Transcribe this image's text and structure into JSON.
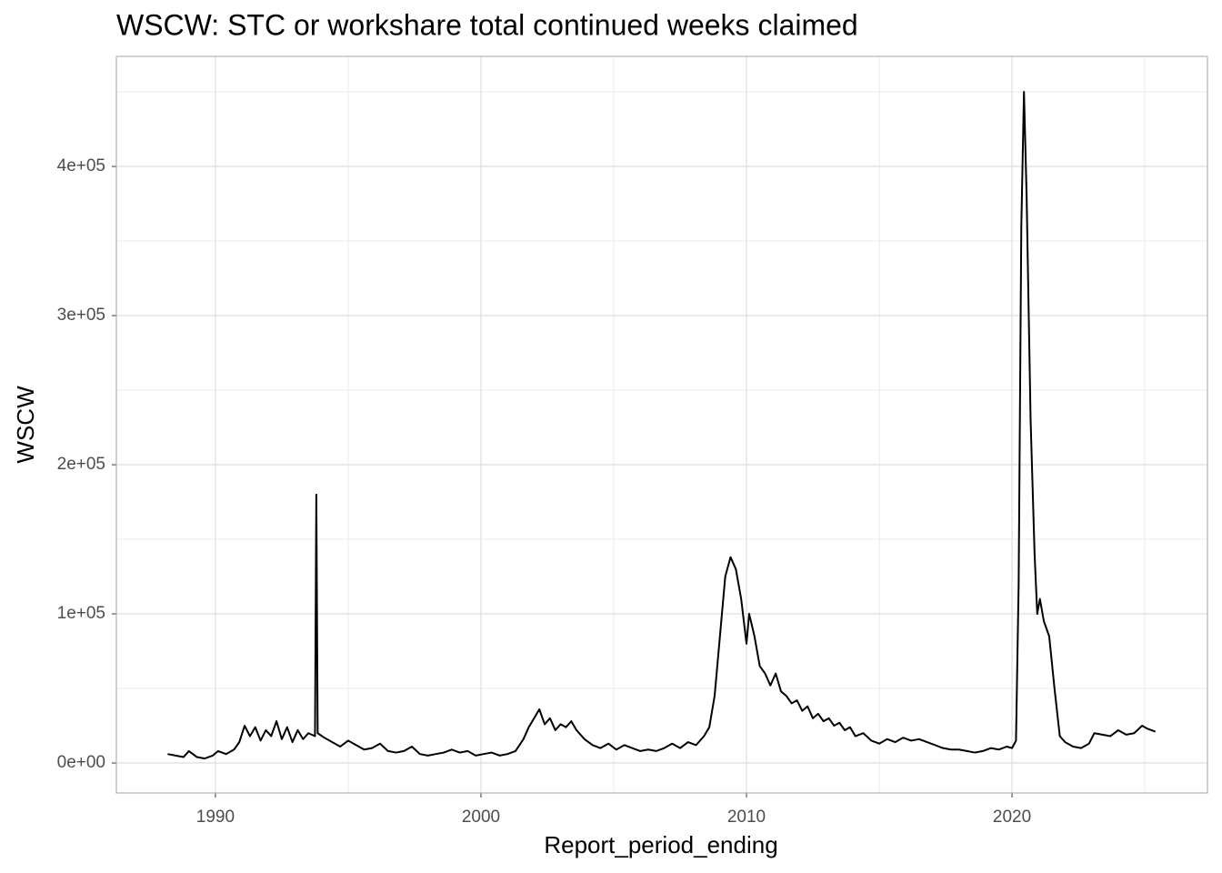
{
  "chart_data": {
    "type": "line",
    "title": "WSCW: STC or workshare total continued weeks claimed",
    "x_label": "Report_period_ending",
    "y_label": "WSCW",
    "xlim": [
      1986.27,
      2027.36
    ],
    "ylim": [
      -20100,
      473800
    ],
    "xticks": [
      1990,
      2000,
      2010,
      2020
    ],
    "xminorticks": [
      1995,
      2005,
      2015,
      2025
    ],
    "yticks": [
      {
        "value": 0,
        "label": "0e+00"
      },
      {
        "value": 100000,
        "label": "1e+05"
      },
      {
        "value": 200000,
        "label": "2e+05"
      },
      {
        "value": 300000,
        "label": "3e+05"
      },
      {
        "value": 400000,
        "label": "4e+05"
      }
    ],
    "yminorticks": [
      50000,
      150000,
      250000,
      350000,
      450000
    ],
    "grid": true,
    "series": [
      {
        "name": "WSCW",
        "color": "#000000",
        "x": [
          1988.2,
          1988.5,
          1988.8,
          1989.0,
          1989.3,
          1989.6,
          1989.9,
          1990.1,
          1990.4,
          1990.7,
          1990.9,
          1991.1,
          1991.3,
          1991.5,
          1991.7,
          1991.9,
          1992.1,
          1992.3,
          1992.5,
          1992.7,
          1992.9,
          1993.1,
          1993.3,
          1993.5,
          1993.75,
          1993.8,
          1993.85,
          1994.1,
          1994.4,
          1994.7,
          1995.0,
          1995.3,
          1995.6,
          1995.9,
          1996.2,
          1996.5,
          1996.8,
          1997.1,
          1997.4,
          1997.7,
          1998.0,
          1998.3,
          1998.6,
          1998.9,
          1999.2,
          1999.5,
          1999.8,
          2000.1,
          2000.4,
          2000.7,
          2001.0,
          2001.3,
          2001.6,
          2001.8,
          2002.0,
          2002.2,
          2002.4,
          2002.6,
          2002.8,
          2003.0,
          2003.2,
          2003.4,
          2003.6,
          2003.9,
          2004.2,
          2004.5,
          2004.8,
          2005.1,
          2005.4,
          2005.7,
          2006.0,
          2006.3,
          2006.6,
          2006.9,
          2007.2,
          2007.5,
          2007.8,
          2008.1,
          2008.4,
          2008.6,
          2008.8,
          2009.0,
          2009.2,
          2009.4,
          2009.6,
          2009.8,
          2010.0,
          2010.1,
          2010.3,
          2010.5,
          2010.7,
          2010.9,
          2011.1,
          2011.3,
          2011.5,
          2011.7,
          2011.9,
          2012.1,
          2012.3,
          2012.5,
          2012.7,
          2012.9,
          2013.1,
          2013.3,
          2013.5,
          2013.7,
          2013.9,
          2014.1,
          2014.4,
          2014.7,
          2015.0,
          2015.3,
          2015.6,
          2015.9,
          2016.2,
          2016.5,
          2016.8,
          2017.1,
          2017.4,
          2017.7,
          2018.0,
          2018.3,
          2018.6,
          2018.9,
          2019.2,
          2019.5,
          2019.8,
          2020.0,
          2020.15,
          2020.25,
          2020.35,
          2020.45,
          2020.55,
          2020.7,
          2020.85,
          2020.95,
          2021.05,
          2021.2,
          2021.4,
          2021.6,
          2021.8,
          2022.0,
          2022.3,
          2022.6,
          2022.9,
          2023.1,
          2023.4,
          2023.7,
          2024.0,
          2024.3,
          2024.6,
          2024.9,
          2025.1,
          2025.4
        ],
        "values": [
          6000,
          5000,
          4000,
          8000,
          4000,
          3000,
          5000,
          8000,
          6000,
          9000,
          14000,
          25000,
          18000,
          24000,
          15000,
          22000,
          18000,
          28000,
          16000,
          24000,
          14000,
          22000,
          16000,
          20000,
          18000,
          180000,
          20000,
          17000,
          14000,
          11000,
          15000,
          12000,
          9000,
          10000,
          13000,
          8000,
          7000,
          8000,
          11000,
          6000,
          5000,
          6000,
          7000,
          9000,
          7000,
          8000,
          5000,
          6000,
          7000,
          5000,
          6000,
          8000,
          16000,
          24000,
          30000,
          36000,
          26000,
          30000,
          22000,
          26000,
          24000,
          28000,
          22000,
          16000,
          12000,
          10000,
          13000,
          9000,
          12000,
          10000,
          8000,
          9000,
          8000,
          10000,
          13000,
          10000,
          14000,
          12000,
          18000,
          24000,
          45000,
          85000,
          125000,
          138000,
          130000,
          110000,
          80000,
          100000,
          85000,
          65000,
          60000,
          52000,
          60000,
          48000,
          45000,
          40000,
          42000,
          35000,
          38000,
          30000,
          33000,
          28000,
          30000,
          25000,
          27000,
          22000,
          24000,
          18000,
          20000,
          15000,
          13000,
          16000,
          14000,
          17000,
          15000,
          16000,
          14000,
          12000,
          10000,
          9000,
          9000,
          8000,
          7000,
          8000,
          10000,
          9000,
          11000,
          10000,
          15000,
          120000,
          360000,
          450000,
          380000,
          230000,
          140000,
          100000,
          110000,
          95000,
          85000,
          50000,
          18000,
          14000,
          11000,
          10000,
          13000,
          20000,
          19000,
          18000,
          22000,
          19000,
          20000,
          25000,
          23000,
          21000
        ]
      }
    ]
  }
}
